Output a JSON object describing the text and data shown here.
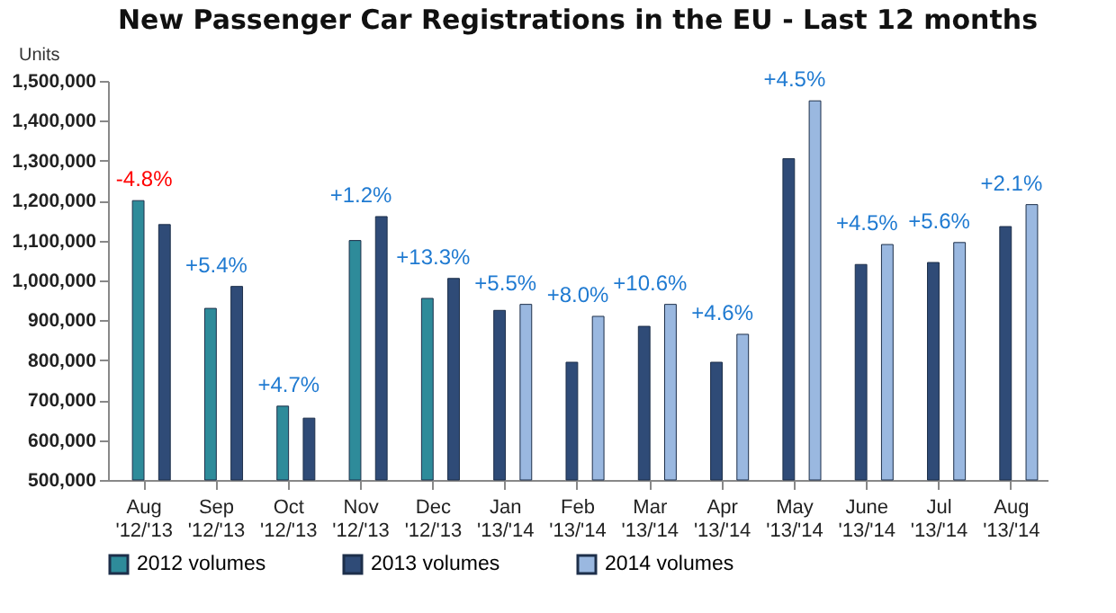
{
  "chart_data": {
    "type": "bar",
    "title": "New Passenger Car Registrations in the EU - Last 12 months",
    "ylabel": "Units",
    "categories": [
      "Aug '12/'13",
      "Sep '12/'13",
      "Oct '12/'13",
      "Nov '12/'13",
      "Dec '12/'13",
      "Jan '13/'14",
      "Feb '13/'14",
      "Mar '13/'14",
      "Apr '13/'14",
      "May '13/'14",
      "June '13/'14",
      "Jul '13/'14",
      "Aug '13/'14"
    ],
    "series": [
      {
        "name": "2012 volumes",
        "color": "#2e8b9a",
        "values": [
          1200000,
          930000,
          685000,
          1100000,
          955000,
          null,
          null,
          null,
          null,
          null,
          null,
          null,
          null
        ]
      },
      {
        "name": "2013 volumes",
        "color": "#2f4b77",
        "values": [
          1140000,
          985000,
          655000,
          1160000,
          1005000,
          925000,
          795000,
          885000,
          795000,
          1305000,
          1040000,
          1045000,
          1135000
        ]
      },
      {
        "name": "2014 volumes",
        "color": "#9ab8e0",
        "values": [
          null,
          null,
          null,
          null,
          null,
          940000,
          910000,
          940000,
          865000,
          1450000,
          1090000,
          1095000,
          1190000
        ]
      }
    ],
    "ylim": [
      500000,
      1500000
    ],
    "yticks": [
      {
        "value": 500000,
        "label": "500,000"
      },
      {
        "value": 600000,
        "label": "600,000"
      },
      {
        "value": 700000,
        "label": "700,000"
      },
      {
        "value": 800000,
        "label": "800,000"
      },
      {
        "value": 900000,
        "label": "900,000"
      },
      {
        "value": 1000000,
        "label": "1,000,000"
      },
      {
        "value": 1100000,
        "label": "1,100,000"
      },
      {
        "value": 1200000,
        "label": "1,200,000"
      },
      {
        "value": 1300000,
        "label": "1,300,000"
      },
      {
        "value": 1400000,
        "label": "1,400,000"
      },
      {
        "value": 1500000,
        "label": "1,500,000"
      }
    ],
    "legend": "bottom",
    "annotations": [
      "-4.8%",
      "+5.4%",
      "+4.7%",
      "+1.2%",
      "+13.3%",
      "+5.5%",
      "+8.0%",
      "+10.6%",
      "+4.6%",
      "+4.5%",
      "+4.5%",
      "+5.6%",
      "+2.1%"
    ]
  }
}
